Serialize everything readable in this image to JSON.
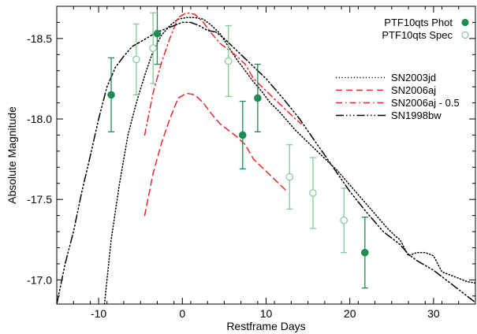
{
  "chart_data": {
    "type": "line",
    "xlabel": "Restframe Days",
    "ylabel": "Absolute Magnitude",
    "xlim": [
      -15,
      35
    ],
    "ylim": [
      -16.85,
      -18.7
    ],
    "y_inverted": true,
    "grid": false,
    "x_ticks": [
      -10,
      0,
      10,
      20,
      30
    ],
    "x_tick_labels": [
      "-10",
      "0",
      "10",
      "20",
      "30"
    ],
    "y_ticks": [
      -18.5,
      -18.0,
      -17.5,
      -17.0
    ],
    "y_tick_labels": [
      "-18.5",
      "-18.0",
      "-17.5",
      "-17.0"
    ],
    "legend_points": {
      "placement": "top-right",
      "entries": [
        {
          "label": "PTF10qts Phot",
          "marker": "filled-circle",
          "color": "#1e8c55"
        },
        {
          "label": "PTF10qts Spec",
          "marker": "open-circle",
          "color": "#82c997"
        }
      ]
    },
    "legend_lines": {
      "placement": "right",
      "entries": [
        {
          "label": "SN2003jd",
          "dash": "dotted",
          "color": "#000000"
        },
        {
          "label": "SN2006aj",
          "dash": "dashed",
          "color": "#e8282d"
        },
        {
          "label": "SN2006aj - 0.5",
          "dash": "dashdot",
          "color": "#e8282d"
        },
        {
          "label": "SN1998bw",
          "dash": "dashdotdotdot",
          "color": "#000000"
        }
      ]
    },
    "points": [
      {
        "name": "PTF10qts Phot",
        "color": "#1e8c55",
        "x": [
          -8.5,
          -3.0,
          7.2,
          9.0,
          21.8
        ],
        "y": [
          -18.15,
          -18.53,
          -17.9,
          -18.13,
          -17.17
        ],
        "err": [
          0.23,
          0.19,
          0.21,
          0.21,
          0.22
        ]
      },
      {
        "name": "PTF10qts Spec",
        "color": "#82c997",
        "x": [
          -5.5,
          -3.5,
          5.5,
          12.8,
          15.6,
          19.3
        ],
        "y": [
          -18.37,
          -18.44,
          -18.36,
          -17.64,
          -17.54,
          -17.37
        ],
        "err": [
          0.22,
          0.22,
          0.22,
          0.2,
          0.22,
          0.2
        ]
      }
    ],
    "series": [
      {
        "name": "SN2003jd",
        "color": "#000000",
        "dash": "dotted",
        "x": [
          -9.3,
          -8.5,
          -7.5,
          -6.5,
          -5.5,
          -4.5,
          -3.5,
          -2.5,
          -1.5,
          -0.5,
          0.5,
          1.5,
          2.5,
          3.5,
          4.5,
          5.5,
          6.5,
          7.5,
          8.5,
          9.5,
          10.5,
          11.5,
          12.5,
          13.5,
          14.5,
          15.5,
          16.5,
          17.5,
          18.5,
          19.5,
          20.5,
          21.5,
          22.5,
          23.5,
          24.5,
          25.5,
          26.0,
          26.5,
          27.0,
          28.0,
          29.0,
          30.0,
          31.0,
          32.0,
          33.0,
          34.0,
          35.0
        ],
        "y": [
          -16.85,
          -17.25,
          -17.6,
          -17.9,
          -18.1,
          -18.27,
          -18.42,
          -18.52,
          -18.58,
          -18.62,
          -18.63,
          -18.63,
          -18.62,
          -18.58,
          -18.53,
          -18.45,
          -18.37,
          -18.3,
          -18.23,
          -18.17,
          -18.1,
          -18.05,
          -17.99,
          -17.93,
          -17.88,
          -17.83,
          -17.78,
          -17.73,
          -17.68,
          -17.62,
          -17.56,
          -17.5,
          -17.44,
          -17.38,
          -17.32,
          -17.27,
          -17.25,
          -17.2,
          -17.15,
          -17.17,
          -17.17,
          -17.15,
          -17.05,
          -17.03,
          -17.01,
          -16.99,
          -16.98
        ]
      },
      {
        "name": "SN2006aj",
        "color": "#e8282d",
        "dash": "dashed",
        "x": [
          -4.5,
          -3.5,
          -2.5,
          -1.5,
          -0.5,
          0.5,
          1.5,
          2.5,
          3.5,
          4.5,
          5.5,
          6.5,
          7.5,
          8.5,
          9.5,
          10.5,
          11.5,
          12.5
        ],
        "y": [
          -17.4,
          -17.66,
          -17.85,
          -18.0,
          -18.13,
          -18.16,
          -18.15,
          -18.1,
          -18.03,
          -17.97,
          -17.93,
          -17.89,
          -17.84,
          -17.75,
          -17.7,
          -17.65,
          -17.6,
          -17.55
        ]
      },
      {
        "name": "SN2006aj - 0.5",
        "color": "#e8282d",
        "dash": "dashdot",
        "x": [
          -4.5,
          -3.5,
          -2.5,
          -1.5,
          -0.5,
          0.5,
          1.5,
          2.5,
          3.5,
          4.5,
          5.5,
          6.5,
          7.5,
          8.5,
          9.5,
          10.5,
          11.5,
          12.5,
          13.5,
          14.2
        ],
        "y": [
          -17.9,
          -18.16,
          -18.35,
          -18.5,
          -18.63,
          -18.66,
          -18.65,
          -18.6,
          -18.53,
          -18.47,
          -18.43,
          -18.39,
          -18.34,
          -18.25,
          -18.2,
          -18.15,
          -18.1,
          -18.05,
          -18.0,
          -17.97
        ]
      },
      {
        "name": "SN1998bw",
        "color": "#000000",
        "dash": "dashdotdotdot",
        "x": [
          -15.0,
          -14.0,
          -13.0,
          -12.0,
          -11.0,
          -10.0,
          -9.0,
          -8.0,
          -7.0,
          -6.0,
          -5.0,
          -4.0,
          -3.0,
          -2.0,
          -1.0,
          0.0,
          1.0,
          2.0,
          3.0,
          4.0,
          5.0,
          6.0,
          7.0,
          8.0,
          9.0,
          10.0,
          12.0,
          14.0,
          16.0,
          18.0,
          20.0,
          22.0,
          24.0,
          26.0,
          27.0,
          28.0,
          30.0,
          32.0,
          35.0
        ],
        "y": [
          -16.85,
          -17.1,
          -17.3,
          -17.55,
          -17.77,
          -18.0,
          -18.2,
          -18.32,
          -18.39,
          -18.45,
          -18.48,
          -18.51,
          -18.54,
          -18.56,
          -18.58,
          -18.6,
          -18.6,
          -18.58,
          -18.55,
          -18.54,
          -18.5,
          -18.45,
          -18.4,
          -18.35,
          -18.3,
          -18.25,
          -18.13,
          -18.0,
          -17.85,
          -17.7,
          -17.55,
          -17.42,
          -17.3,
          -17.22,
          -17.16,
          -17.12,
          -17.06,
          -16.98,
          -16.86
        ]
      }
    ]
  }
}
